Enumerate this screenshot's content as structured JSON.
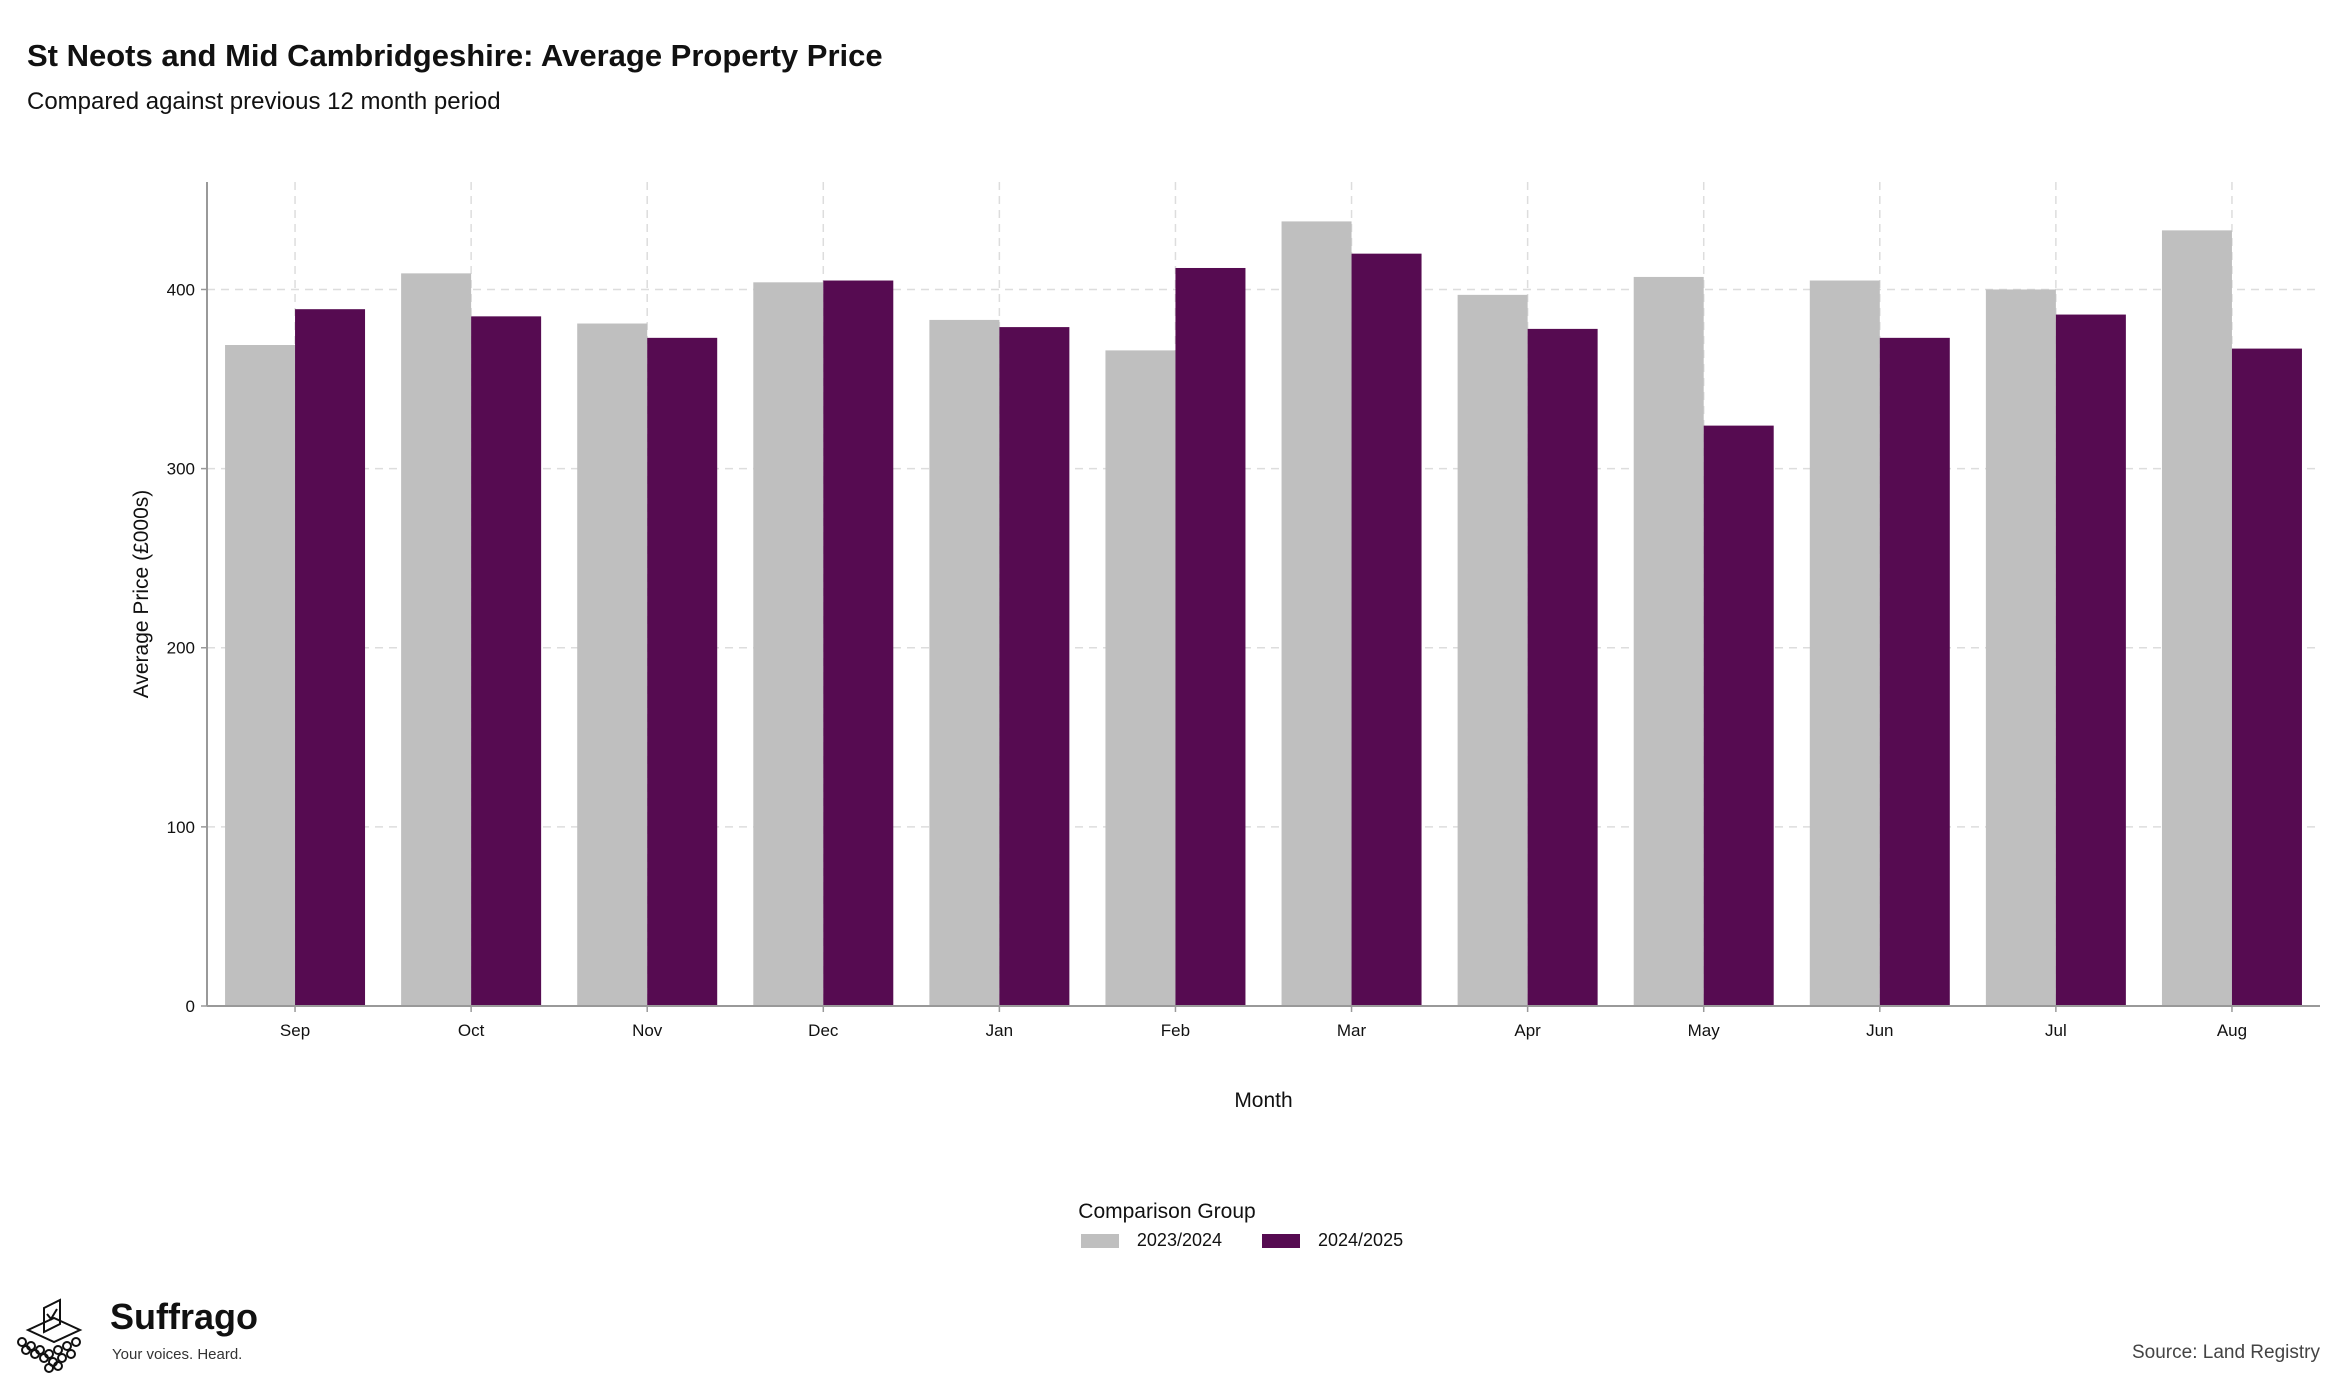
{
  "header": {
    "title": "St Neots and Mid Cambridgeshire: Average Property Price",
    "subtitle": "Compared against previous 12 month period"
  },
  "chart_data": {
    "type": "bar",
    "categories": [
      "Sep",
      "Oct",
      "Nov",
      "Dec",
      "Jan",
      "Feb",
      "Mar",
      "Apr",
      "May",
      "Jun",
      "Jul",
      "Aug"
    ],
    "series": [
      {
        "name": "2023/2024",
        "color": "#bfbfbf",
        "values": [
          369,
          409,
          381,
          404,
          383,
          366,
          438,
          397,
          407,
          405,
          400,
          433
        ]
      },
      {
        "name": "2024/2025",
        "color": "#560b51",
        "values": [
          389,
          385,
          373,
          405,
          379,
          412,
          420,
          378,
          324,
          373,
          386,
          367
        ]
      }
    ],
    "xlabel": "Month",
    "ylabel": "Average Price (£000s)",
    "ylim": [
      0,
      460
    ],
    "yticks": [
      0,
      100,
      200,
      300,
      400
    ],
    "grid": true,
    "legend": {
      "title": "Comparison Group",
      "position": "bottom"
    }
  },
  "branding": {
    "name": "Suffrago",
    "tagline": "Your voices. Heard."
  },
  "source": "Source: Land Registry"
}
